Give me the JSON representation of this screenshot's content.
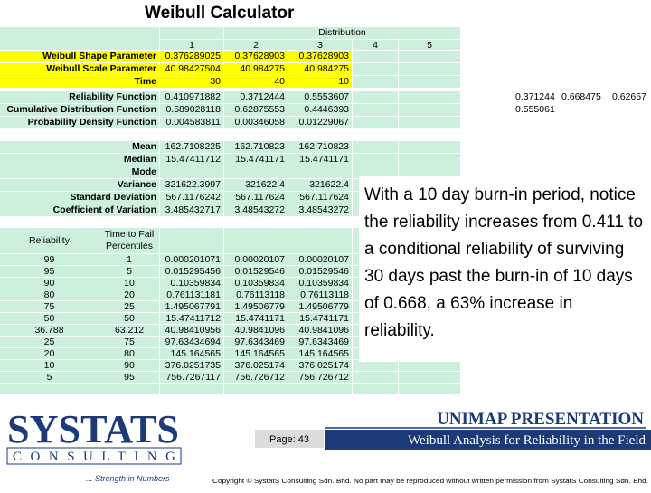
{
  "title": "Weibull Calculator",
  "table": {
    "group_header": "Distribution",
    "columns": [
      "1",
      "2",
      "3",
      "4",
      "5"
    ],
    "parameters": [
      {
        "label": "Weibull Shape Parameter",
        "values": [
          "0.376289025",
          "0.37628903",
          "0.37628903"
        ]
      },
      {
        "label": "Weibull Scale Parameter",
        "values": [
          "40.98427504",
          "40.984275",
          "40.984275"
        ]
      },
      {
        "label": "Time",
        "values": [
          "30",
          "40",
          "10"
        ]
      }
    ],
    "functions": [
      {
        "label": "Reliability Function",
        "values": [
          "0.410971882",
          "0.3712444",
          "0.5553607"
        ]
      },
      {
        "label": "Cumulative Distribution Function",
        "values": [
          "0.589028118",
          "0.62875553",
          "0.4446393"
        ]
      },
      {
        "label": "Probability Density Function",
        "values": [
          "0.004583811",
          "0.00346058",
          "0.01229067"
        ]
      }
    ],
    "side_values": [
      [
        "0.371244",
        "0.668475",
        "0.62657"
      ],
      [
        "0.555061"
      ]
    ],
    "statistics": [
      {
        "label": "Mean",
        "values": [
          "162.7108225",
          "162.710823",
          "162.710823"
        ]
      },
      {
        "label": "Median",
        "values": [
          "15.47411712",
          "15.4741171",
          "15.4741171"
        ]
      },
      {
        "label": "Mode",
        "values": []
      },
      {
        "label": "Variance",
        "values": [
          "321622.3997",
          "321622.4",
          "321622.4"
        ]
      },
      {
        "label": "Standard Deviation",
        "values": [
          "567.1176242",
          "567.117624",
          "567.117624"
        ]
      },
      {
        "label": "Coefficient of Variation",
        "values": [
          "3.485432717",
          "3.48543272",
          "3.48543272"
        ]
      }
    ],
    "percentile_headers": [
      "Reliability",
      "Time to Fail Percentiles"
    ],
    "percentiles": [
      [
        "99",
        "1",
        "0.000201071",
        "0.00020107",
        "0.00020107"
      ],
      [
        "95",
        "5",
        "0.015295456",
        "0.01529546",
        "0.01529546"
      ],
      [
        "90",
        "10",
        "0.10359834",
        "0.10359834",
        "0.10359834"
      ],
      [
        "80",
        "20",
        "0.761131181",
        "0.76113118",
        "0.76113118"
      ],
      [
        "75",
        "25",
        "1.495067791",
        "1.49506779",
        "1.49506779"
      ],
      [
        "50",
        "50",
        "15.47411712",
        "15.4741171",
        "15.4741171"
      ],
      [
        "36.788",
        "63.212",
        "40.98410956",
        "40.9841096",
        "40.9841096"
      ],
      [
        "25",
        "75",
        "97.63434694",
        "97.6343469",
        "97.6343469"
      ],
      [
        "20",
        "80",
        "145.164565",
        "145.164565",
        "145.164565"
      ],
      [
        "10",
        "90",
        "376.0251735",
        "376.025174",
        "376.025174"
      ],
      [
        "5",
        "95",
        "756.7267117",
        "756.726712",
        "756.726712"
      ]
    ]
  },
  "callout": "With a 10 day burn-in period, notice the reliability increases from 0.411 to a conditional reliability of surviving 30 days past the burn-in of 10 days of 0.668, a 63% increase in reliability.",
  "footer": {
    "logo": "SYSTATS",
    "logo_sub": "CONSULTING",
    "tagline": "... Strength in Numbers",
    "presentation": "UNIMAP PRESENTATION",
    "page": "Page:  43",
    "subject": "Weibull Analysis for Reliability in the Field",
    "copyright": "Copyright © SystatS Consulting Sdn. Bhd.  No part may be reproduced without written permission from SystatS Consulting Sdn. Bhd."
  }
}
